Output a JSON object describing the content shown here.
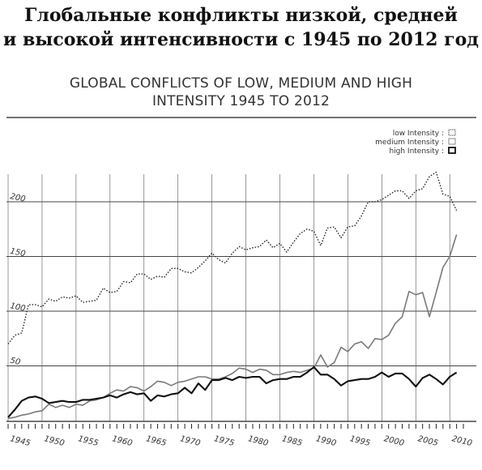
{
  "title_ru_line1": "Глобальные конфликты низкой, средней",
  "title_ru_line2": "и высокой интенсивности с 1945 по 2012 год",
  "title_en_line1": "GLOBAL CONFLICTS OF LOW, MEDIUM AND HIGH",
  "title_en_line2": "INTENSITY 1945 TO 2012",
  "chart_data": {
    "type": "line",
    "title": "GLOBAL CONFLICTS OF LOW, MEDIUM AND HIGH INTENSITY 1945 TO 2012",
    "xlabel": "",
    "ylabel": "",
    "xlim": [
      1945,
      2012
    ],
    "ylim": [
      0,
      250
    ],
    "grid": true,
    "legend_position": "top-right",
    "y_ticks": [
      {
        "value": 50,
        "label": "50"
      },
      {
        "value": 100,
        "label": "100"
      },
      {
        "value": 150,
        "label": "150"
      },
      {
        "value": 200,
        "label": "200"
      }
    ],
    "x_ticks": [
      {
        "value": 1945,
        "label": "1945"
      },
      {
        "value": 1950,
        "label": "1950"
      },
      {
        "value": 1955,
        "label": "1955"
      },
      {
        "value": 1960,
        "label": "1960"
      },
      {
        "value": 1965,
        "label": "1965"
      },
      {
        "value": 1970,
        "label": "1970"
      },
      {
        "value": 1975,
        "label": "1975"
      },
      {
        "value": 1980,
        "label": "1980"
      },
      {
        "value": 1985,
        "label": "1985"
      },
      {
        "value": 1990,
        "label": "1990"
      },
      {
        "value": 1995,
        "label": "1995"
      },
      {
        "value": 2000,
        "label": "2000"
      },
      {
        "value": 2005,
        "label": "2005"
      },
      {
        "value": 2010,
        "label": "2010"
      }
    ],
    "x": [
      1945,
      1946,
      1947,
      1948,
      1949,
      1950,
      1951,
      1952,
      1953,
      1954,
      1955,
      1956,
      1957,
      1958,
      1959,
      1960,
      1961,
      1962,
      1963,
      1964,
      1965,
      1966,
      1967,
      1968,
      1969,
      1970,
      1971,
      1972,
      1973,
      1974,
      1975,
      1976,
      1977,
      1978,
      1979,
      1980,
      1981,
      1982,
      1983,
      1984,
      1985,
      1986,
      1987,
      1988,
      1989,
      1990,
      1991,
      1992,
      1993,
      1994,
      1995,
      1996,
      1997,
      1998,
      1999,
      2000,
      2001,
      2002,
      2003,
      2004,
      2005,
      2006,
      2007,
      2008,
      2009,
      2010,
      2011
    ],
    "series": [
      {
        "name": "low Intensity :",
        "style": "dotted",
        "color": "#222222",
        "values": [
          70,
          78,
          80,
          106,
          106,
          104,
          111,
          109,
          113,
          112,
          114,
          108,
          109,
          110,
          121,
          117,
          118,
          127,
          126,
          134,
          134,
          129,
          132,
          131,
          139,
          139,
          136,
          135,
          140,
          146,
          153,
          147,
          144,
          153,
          159,
          156,
          158,
          159,
          165,
          158,
          162,
          154,
          163,
          171,
          175,
          173,
          160,
          176,
          177,
          167,
          177,
          178,
          187,
          200,
          200,
          202,
          206,
          210,
          210,
          203,
          210,
          212,
          223,
          227,
          207,
          205,
          192
        ]
      },
      {
        "name": "medium Intensity :",
        "style": "solid-thin",
        "color": "#777777",
        "values": [
          2,
          3,
          5,
          6,
          8,
          9,
          15,
          12,
          14,
          12,
          15,
          14,
          18,
          19,
          21,
          25,
          28,
          27,
          31,
          30,
          27,
          31,
          36,
          35,
          32,
          35,
          36,
          38,
          40,
          40,
          38,
          38,
          40,
          43,
          48,
          47,
          44,
          47,
          46,
          42,
          42,
          44,
          45,
          44,
          46,
          48,
          60,
          49,
          53,
          67,
          63,
          70,
          72,
          66,
          75,
          74,
          78,
          89,
          95,
          118,
          115,
          117,
          95,
          117,
          140,
          150,
          170
        ]
      },
      {
        "name": "high Intensity :",
        "style": "solid-thick",
        "color": "#111111",
        "values": [
          3,
          10,
          18,
          21,
          22,
          20,
          16,
          17,
          18,
          17,
          17,
          19,
          19,
          20,
          21,
          23,
          21,
          24,
          26,
          24,
          25,
          18,
          23,
          22,
          24,
          25,
          30,
          25,
          34,
          28,
          37,
          37,
          39,
          37,
          40,
          39,
          40,
          40,
          34,
          37,
          38,
          38,
          40,
          40,
          44,
          49,
          42,
          42,
          38,
          32,
          36,
          37,
          38,
          38,
          40,
          44,
          40,
          43,
          43,
          38,
          31,
          39,
          42,
          38,
          33,
          40,
          44
        ]
      }
    ]
  }
}
